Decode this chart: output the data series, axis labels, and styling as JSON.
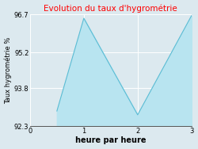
{
  "title": "Evolution du taux d'hygrométrie",
  "title_color": "#ff0000",
  "xlabel": "heure par heure",
  "ylabel": "Taux hygrométrie %",
  "x_values": [
    0.5,
    1,
    2,
    3
  ],
  "y_values": [
    92.9,
    96.55,
    92.75,
    96.65
  ],
  "ylim": [
    92.3,
    96.7
  ],
  "xlim": [
    0,
    3
  ],
  "yticks": [
    92.3,
    93.8,
    95.2,
    96.7
  ],
  "xticks": [
    0,
    1,
    2,
    3
  ],
  "fill_color": "#b8e4f0",
  "line_color": "#5bbcd4",
  "background_color": "#dce9ef",
  "plot_bg_color": "#dce9ef",
  "title_fontsize": 7.5,
  "xlabel_fontsize": 7,
  "ylabel_fontsize": 6,
  "tick_fontsize": 6
}
